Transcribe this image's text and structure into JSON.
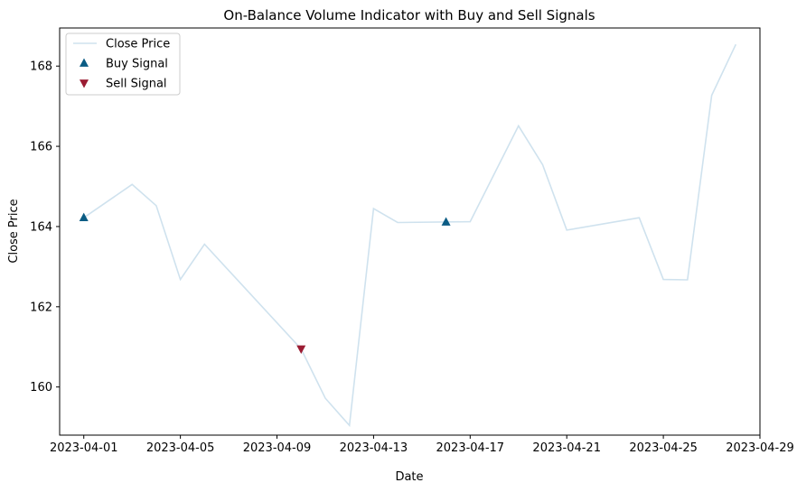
{
  "chart_data": {
    "type": "line",
    "title": "On-Balance Volume Indicator with Buy and Sell Signals",
    "xlabel": "Date",
    "ylabel": "Close Price",
    "xlim": [
      "2023-03-31",
      "2023-04-29"
    ],
    "ylim": [
      158.8,
      168.95
    ],
    "x_ticks": [
      "2023-04-01",
      "2023-04-05",
      "2023-04-09",
      "2023-04-13",
      "2023-04-17",
      "2023-04-21",
      "2023-04-25",
      "2023-04-29"
    ],
    "y_ticks": [
      160,
      162,
      164,
      166,
      168
    ],
    "grid": false,
    "legend_position": "top-left",
    "series": [
      {
        "name": "Close Price",
        "color": "#cfe2ee",
        "x": [
          "2023-04-01",
          "2023-04-03",
          "2023-04-04",
          "2023-04-05",
          "2023-04-06",
          "2023-04-10",
          "2023-04-11",
          "2023-04-12",
          "2023-04-13",
          "2023-04-14",
          "2023-04-17",
          "2023-04-19",
          "2023-04-20",
          "2023-04-21",
          "2023-04-24",
          "2023-04-25",
          "2023-04-26",
          "2023-04-27",
          "2023-04-28"
        ],
        "values": [
          164.22,
          165.05,
          164.52,
          162.68,
          163.56,
          160.95,
          159.72,
          159.04,
          164.45,
          164.1,
          164.12,
          166.51,
          165.54,
          163.91,
          164.22,
          162.68,
          162.67,
          167.27,
          168.54
        ]
      }
    ],
    "markers": [
      {
        "name": "Buy Signal",
        "marker": "triangle-up",
        "color": "#0b5c84",
        "x": [
          "2023-04-01",
          "2023-04-16"
        ],
        "values": [
          164.22,
          164.11
        ]
      },
      {
        "name": "Sell Signal",
        "marker": "triangle-down",
        "color": "#9b1c33",
        "x": [
          "2023-04-10"
        ],
        "values": [
          160.95
        ]
      }
    ]
  }
}
